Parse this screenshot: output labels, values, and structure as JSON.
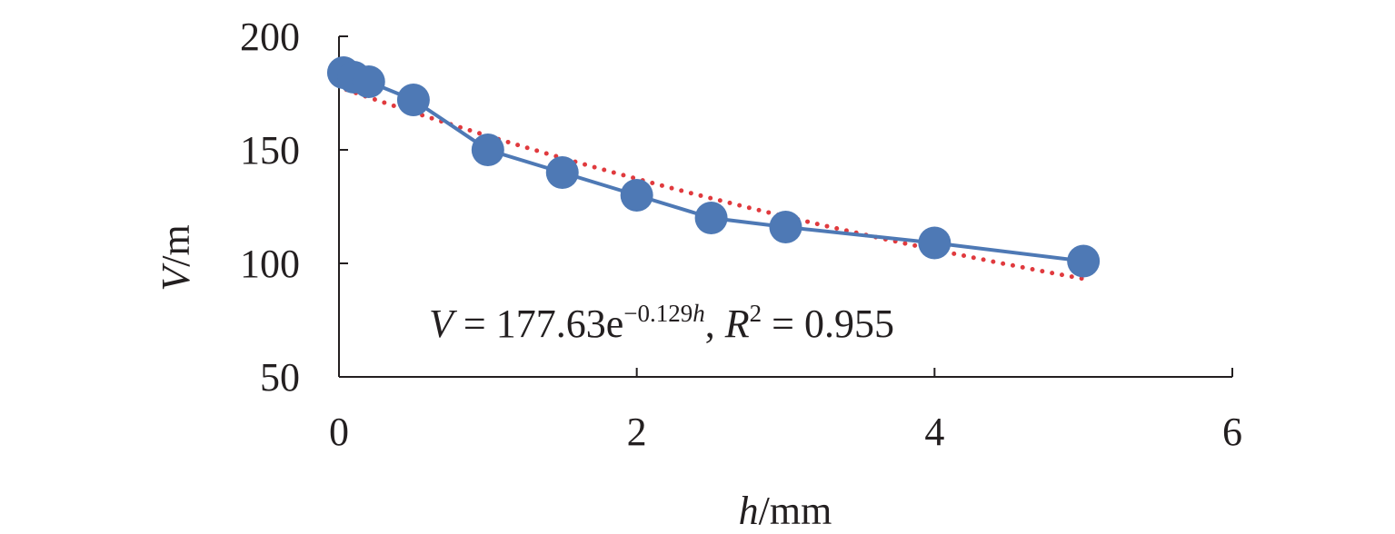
{
  "chart_data": {
    "type": "line",
    "xlabel": {
      "var": "h",
      "unit": "/mm"
    },
    "ylabel": {
      "var": "V",
      "unit": "/m"
    },
    "xlim": [
      0,
      6
    ],
    "ylim": [
      50,
      200
    ],
    "x_ticks": [
      "0",
      "2",
      "4",
      "6"
    ],
    "y_ticks": [
      "50",
      "100",
      "150",
      "200"
    ],
    "grid": false,
    "series": [
      {
        "x": [
          0.03,
          0.1,
          0.2,
          0.5,
          1.0,
          1.5,
          2.0,
          2.5,
          3.0,
          4.0,
          5.0
        ],
        "y": [
          184,
          182,
          180,
          172,
          150,
          140,
          130,
          120,
          116,
          109,
          101
        ],
        "color": "#4e79b5"
      }
    ],
    "trendline": {
      "type": "exponential",
      "a": 177.63,
      "b": -0.129,
      "x_range": [
        0.05,
        5.0
      ],
      "color": "#e03a3e"
    },
    "annotation": {
      "v": "V",
      "eq_mid": " = 177.63e",
      "exp_num": "−0.129",
      "exp_var": "h",
      "sep": ", ",
      "r": "R",
      "r_exp": "2",
      "r_val": " = 0.955"
    }
  }
}
